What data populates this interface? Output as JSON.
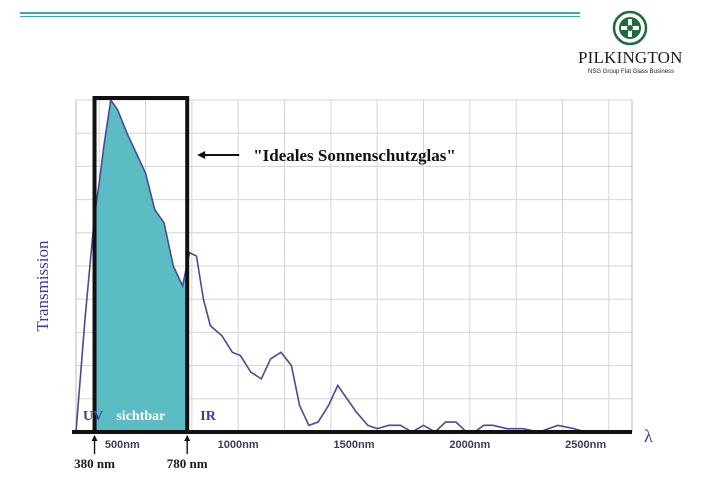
{
  "brand": {
    "name": "PILKINGTON",
    "tagline": "NSG Group Flat Glass Business",
    "logo_icon": "pilkington-cross-emblem"
  },
  "colors": {
    "accent_line": "#3ea7b0",
    "fill": "#5bbcc4",
    "curve": "#4a4a9a",
    "text_blue": "#3c3c9c",
    "frame": "#111111",
    "logo_green": "#1e6a3a"
  },
  "chart_data": {
    "type": "area",
    "title": "",
    "ylabel": "Transmission",
    "xlabel": "λ",
    "xlim": [
      300,
      2700
    ],
    "ylim": [
      0,
      100
    ],
    "grid": true,
    "x_ticks": [
      {
        "value": 500,
        "label": "500nm"
      },
      {
        "value": 1000,
        "label": "1000nm"
      },
      {
        "value": 1500,
        "label": "1500nm"
      },
      {
        "value": 2000,
        "label": "2000nm"
      },
      {
        "value": 2500,
        "label": "2500nm"
      }
    ],
    "regions": [
      {
        "label": "UV"
      },
      {
        "label": "sichtbar"
      },
      {
        "label": "IR"
      }
    ],
    "boundaries": [
      {
        "value": 380,
        "label": "380 nm"
      },
      {
        "value": 780,
        "label": "780 nm"
      }
    ],
    "annotation": "\"Ideales Sonnenschutzglas\"",
    "ideal_window": {
      "x_range": [
        380,
        780
      ]
    },
    "series": [
      {
        "x": [
          300,
          340,
          360,
          380,
          400,
          420,
          450,
          480,
          520,
          560,
          600,
          640,
          680,
          720,
          760,
          790,
          820,
          850,
          880,
          930,
          975,
          1010,
          1055,
          1100,
          1140,
          1185,
          1230,
          1265,
          1305,
          1345,
          1390,
          1430,
          1460,
          1510,
          1560,
          1600,
          1650,
          1700,
          1750,
          1800,
          1850,
          1895,
          1940,
          1985,
          2020,
          2060,
          2100,
          2160,
          2230,
          2300,
          2380,
          2450,
          2500,
          2540
        ],
        "y": [
          0,
          35,
          50,
          65,
          75,
          86,
          100,
          97,
          90,
          84,
          78,
          67,
          63,
          50,
          44,
          54,
          53,
          40,
          32,
          29,
          24,
          23,
          18,
          16,
          22,
          24,
          20,
          8,
          2,
          3,
          8,
          14,
          11,
          6,
          2,
          1,
          2,
          2,
          0,
          2,
          0,
          3,
          3,
          0,
          0,
          2,
          2,
          1,
          1,
          0,
          2,
          1,
          0,
          0
        ]
      }
    ]
  }
}
